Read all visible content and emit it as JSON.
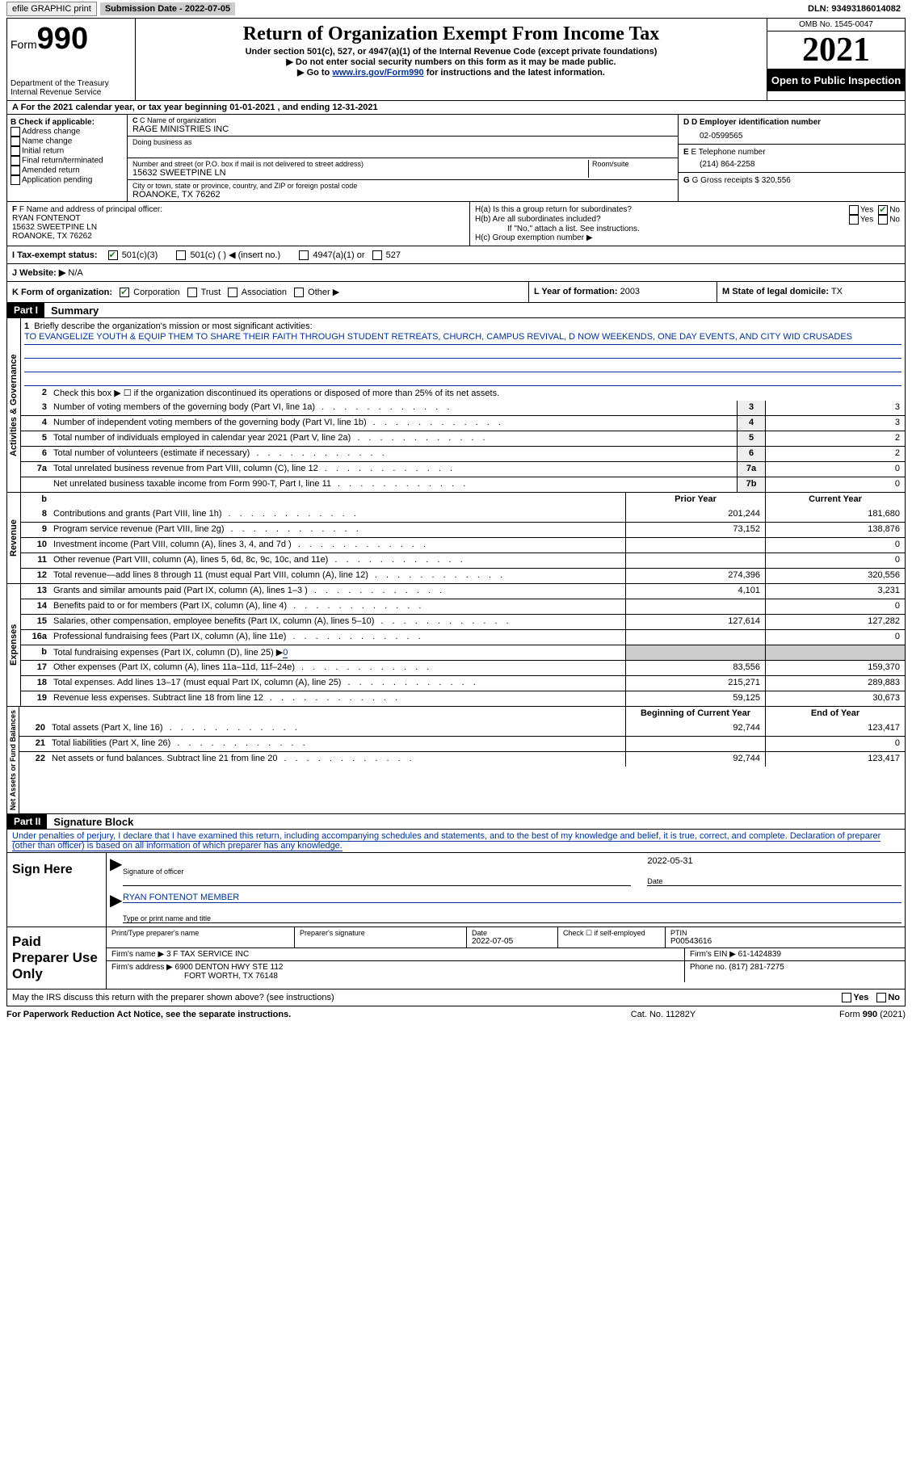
{
  "topbar": {
    "efile": "efile GRAPHIC print",
    "submission": "Submission Date - 2022-07-05",
    "dln": "DLN: 93493186014082"
  },
  "header": {
    "form_label": "Form",
    "form_number": "990",
    "dept": "Department of the Treasury Internal Revenue Service",
    "title": "Return of Organization Exempt From Income Tax",
    "sub1": "Under section 501(c), 527, or 4947(a)(1) of the Internal Revenue Code (except private foundations)",
    "sub2": "▶ Do not enter social security numbers on this form as it may be made public.",
    "sub3_pre": "▶ Go to ",
    "sub3_link": "www.irs.gov/Form990",
    "sub3_post": " for instructions and the latest information.",
    "omb": "OMB No. 1545-0047",
    "year": "2021",
    "open": "Open to Public Inspection"
  },
  "rowA": "A For the 2021 calendar year, or tax year beginning 01-01-2021   , and ending 12-31-2021",
  "sectionB": {
    "b_label": "B Check if applicable:",
    "checks": [
      "Address change",
      "Name change",
      "Initial return",
      "Final return/terminated",
      "Amended return",
      "Application pending"
    ],
    "c_label": "C Name of organization",
    "org_name": "RAGE MINISTRIES INC",
    "dba": "Doing business as",
    "addr_label": "Number and street (or P.O. box if mail is not delivered to street address)",
    "room_label": "Room/suite",
    "addr": "15632 SWEETPINE LN",
    "city_label": "City or town, state or province, country, and ZIP or foreign postal code",
    "city": "ROANOKE, TX  76262",
    "d_label": "D Employer identification number",
    "ein": "02-0599565",
    "e_label": "E Telephone number",
    "phone": "(214) 864-2258",
    "g_label": "G Gross receipts $",
    "gross": "320,556"
  },
  "sectionF": {
    "f_label": "F Name and address of principal officer:",
    "officer_name": "RYAN FONTENOT",
    "officer_addr1": "15632 SWEETPINE LN",
    "officer_addr2": "ROANOKE, TX  76262",
    "ha": "H(a)  Is this a group return for subordinates?",
    "hb": "H(b)  Are all subordinates included?",
    "hb_note": "If \"No,\" attach a list. See instructions.",
    "hc": "H(c)  Group exemption number ▶",
    "yes": "Yes",
    "no": "No"
  },
  "sectionI": {
    "label": "I   Tax-exempt status:",
    "opt1": "501(c)(3)",
    "opt2": "501(c) (  ) ◀ (insert no.)",
    "opt3": "4947(a)(1) or",
    "opt4": "527"
  },
  "sectionJ": {
    "label": "J   Website: ▶",
    "value": "N/A"
  },
  "sectionK": {
    "k_label": "K Form of organization:",
    "corp": "Corporation",
    "trust": "Trust",
    "assoc": "Association",
    "other": "Other ▶",
    "l_label": "L Year of formation:",
    "l_val": "2003",
    "m_label": "M State of legal domicile:",
    "m_val": "TX"
  },
  "part1": {
    "header": "Part I",
    "title": "Summary",
    "line1_label": "Briefly describe the organization's mission or most significant activities:",
    "mission": "TO EVANGELIZE YOUTH & EQUIP THEM TO SHARE THEIR FAITH THROUGH STUDENT RETREATS, CHURCH, CAMPUS REVIVAL, D NOW WEEKENDS, ONE DAY EVENTS, AND CITY WID CRUSADES",
    "line2": "Check this box ▶ ☐  if the organization discontinued its operations or disposed of more than 25% of its net assets.",
    "prior_year": "Prior Year",
    "current_year": "Current Year",
    "begin_year": "Beginning of Current Year",
    "end_year": "End of Year",
    "vlabels": {
      "gov": "Activities & Governance",
      "rev": "Revenue",
      "exp": "Expenses",
      "net": "Net Assets or Fund Balances"
    },
    "lines_gov": [
      {
        "n": "3",
        "d": "Number of voting members of the governing body (Part VI, line 1a)",
        "box": "3",
        "v": "3"
      },
      {
        "n": "4",
        "d": "Number of independent voting members of the governing body (Part VI, line 1b)",
        "box": "4",
        "v": "3"
      },
      {
        "n": "5",
        "d": "Total number of individuals employed in calendar year 2021 (Part V, line 2a)",
        "box": "5",
        "v": "2"
      },
      {
        "n": "6",
        "d": "Total number of volunteers (estimate if necessary)",
        "box": "6",
        "v": "2"
      },
      {
        "n": "7a",
        "d": "Total unrelated business revenue from Part VIII, column (C), line 12",
        "box": "7a",
        "v": "0"
      },
      {
        "n": "",
        "d": "Net unrelated business taxable income from Form 990-T, Part I, line 11",
        "box": "7b",
        "v": "0"
      }
    ],
    "lines_rev": [
      {
        "n": "8",
        "d": "Contributions and grants (Part VIII, line 1h)",
        "p": "201,244",
        "c": "181,680"
      },
      {
        "n": "9",
        "d": "Program service revenue (Part VIII, line 2g)",
        "p": "73,152",
        "c": "138,876"
      },
      {
        "n": "10",
        "d": "Investment income (Part VIII, column (A), lines 3, 4, and 7d )",
        "p": "",
        "c": "0"
      },
      {
        "n": "11",
        "d": "Other revenue (Part VIII, column (A), lines 5, 6d, 8c, 9c, 10c, and 11e)",
        "p": "",
        "c": "0"
      },
      {
        "n": "12",
        "d": "Total revenue—add lines 8 through 11 (must equal Part VIII, column (A), line 12)",
        "p": "274,396",
        "c": "320,556"
      }
    ],
    "lines_exp": [
      {
        "n": "13",
        "d": "Grants and similar amounts paid (Part IX, column (A), lines 1–3 )",
        "p": "4,101",
        "c": "3,231"
      },
      {
        "n": "14",
        "d": "Benefits paid to or for members (Part IX, column (A), line 4)",
        "p": "",
        "c": "0"
      },
      {
        "n": "15",
        "d": "Salaries, other compensation, employee benefits (Part IX, column (A), lines 5–10)",
        "p": "127,614",
        "c": "127,282"
      },
      {
        "n": "16a",
        "d": "Professional fundraising fees (Part IX, column (A), line 11e)",
        "p": "",
        "c": "0"
      },
      {
        "n": "b",
        "d": "Total fundraising expenses (Part IX, column (D), line 25) ▶",
        "p": "shaded",
        "c": "shaded",
        "fund": "0"
      },
      {
        "n": "17",
        "d": "Other expenses (Part IX, column (A), lines 11a–11d, 11f–24e)",
        "p": "83,556",
        "c": "159,370"
      },
      {
        "n": "18",
        "d": "Total expenses. Add lines 13–17 (must equal Part IX, column (A), line 25)",
        "p": "215,271",
        "c": "289,883"
      },
      {
        "n": "19",
        "d": "Revenue less expenses. Subtract line 18 from line 12",
        "p": "59,125",
        "c": "30,673"
      }
    ],
    "lines_net": [
      {
        "n": "20",
        "d": "Total assets (Part X, line 16)",
        "p": "92,744",
        "c": "123,417"
      },
      {
        "n": "21",
        "d": "Total liabilities (Part X, line 26)",
        "p": "",
        "c": "0"
      },
      {
        "n": "22",
        "d": "Net assets or fund balances. Subtract line 21 from line 20",
        "p": "92,744",
        "c": "123,417"
      }
    ]
  },
  "part2": {
    "header": "Part II",
    "title": "Signature Block",
    "penalty": "Under penalties of perjury, I declare that I have examined this return, including accompanying schedules and statements, and to the best of my knowledge and belief, it is true, correct, and complete. Declaration of preparer (other than officer) is based on all information of which preparer has any knowledge.",
    "sign_here": "Sign Here",
    "sig_officer": "Signature of officer",
    "sig_date": "2022-05-31",
    "date_lbl": "Date",
    "name_title": "RYAN FONTENOT MEMBER",
    "type_lbl": "Type or print name and title"
  },
  "preparer": {
    "label": "Paid Preparer Use Only",
    "print_lbl": "Print/Type preparer's name",
    "sig_lbl": "Preparer's signature",
    "date_lbl": "Date",
    "date_val": "2022-07-05",
    "check_lbl": "Check ☐ if self-employed",
    "ptin_lbl": "PTIN",
    "ptin": "P00543616",
    "firm_name_lbl": "Firm's name   ▶",
    "firm_name": "3 F TAX SERVICE INC",
    "firm_ein_lbl": "Firm's EIN ▶",
    "firm_ein": "61-1424839",
    "firm_addr_lbl": "Firm's address ▶",
    "firm_addr1": "6900 DENTON HWY STE 112",
    "firm_addr2": "FORT WORTH, TX  76148",
    "phone_lbl": "Phone no.",
    "phone": "(817) 281-7275"
  },
  "may_discuss": "May the IRS discuss this return with the preparer shown above? (see instructions)",
  "footer": {
    "f1": "For Paperwork Reduction Act Notice, see the separate instructions.",
    "f2": "Cat. No. 11282Y",
    "f3": "Form 990 (2021)"
  }
}
